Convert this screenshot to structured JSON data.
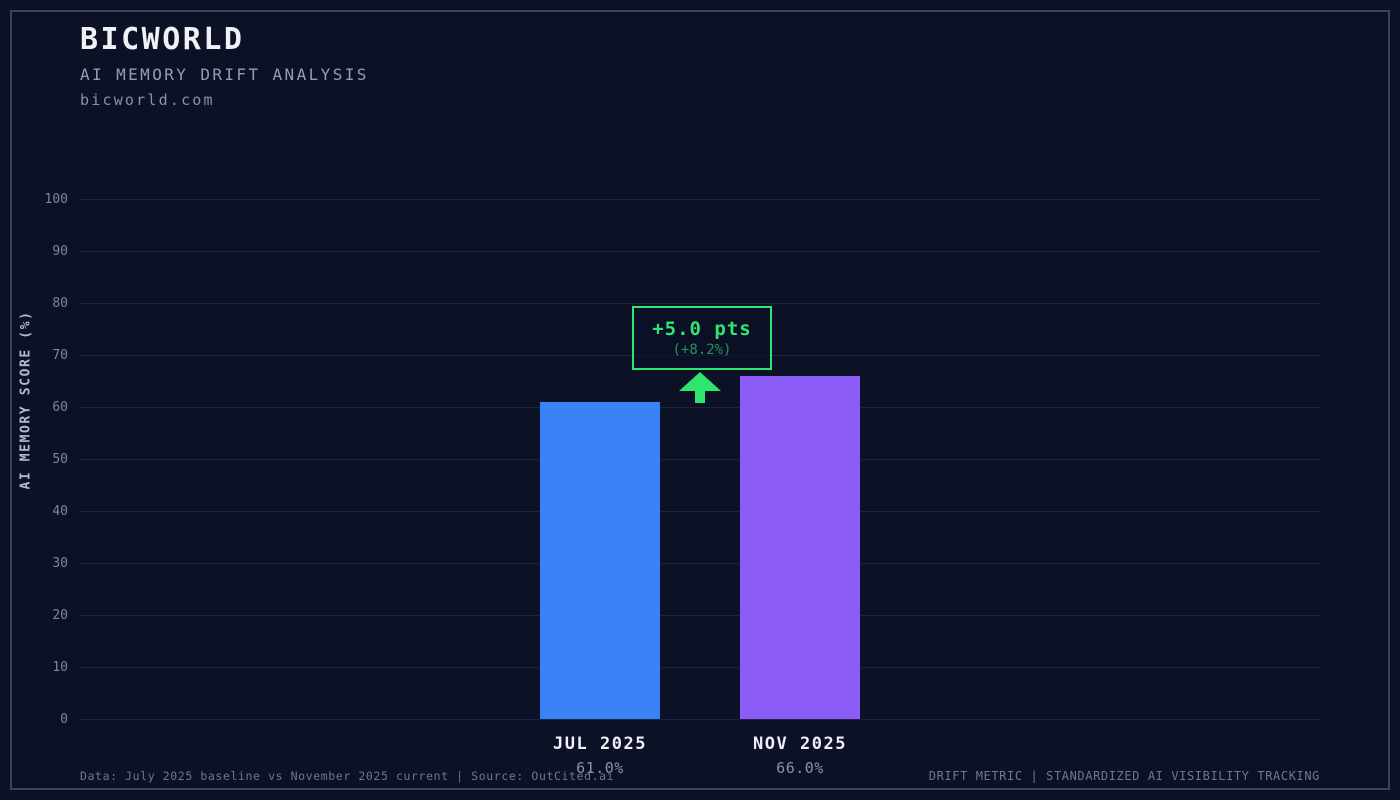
{
  "header": {
    "title": "BICWORLD",
    "subtitle": "AI MEMORY DRIFT ANALYSIS",
    "url": "bicworld.com"
  },
  "chart_data": {
    "type": "bar",
    "title": "AI MEMORY DRIFT ANALYSIS",
    "xlabel": "",
    "ylabel": "AI MEMORY SCORE (%)",
    "ylim": [
      0,
      100
    ],
    "ytick_step": 10,
    "grid": true,
    "legend_position": "none",
    "categories": [
      "JUL 2025",
      "NOV 2025"
    ],
    "values": [
      61.0,
      66.0
    ],
    "value_labels": [
      "61.0%",
      "66.0%"
    ],
    "bar_colors": [
      "#3b82f6",
      "#8b5cf6"
    ],
    "annotation": {
      "delta": "+5.0 pts",
      "percent_change": "(+8.2%)"
    }
  },
  "footer": {
    "left": "Data: July 2025 baseline vs November 2025 current | Source: OutCited.ai",
    "right": "DRIFT METRIC | STANDARDIZED AI VISIBILITY TRACKING"
  },
  "colors": {
    "background": "#0d1126",
    "frame_border": "#3a4258",
    "gridline": "#1d2440",
    "bar_jul": "#3b82f6",
    "bar_nov": "#8b5cf6",
    "accent_green": "#2ee56e"
  }
}
